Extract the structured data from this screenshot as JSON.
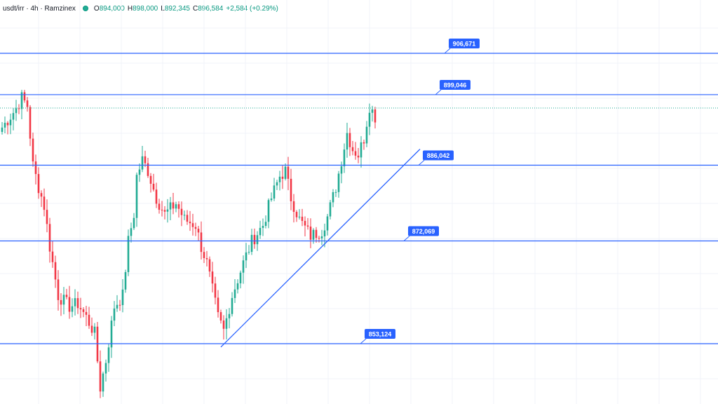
{
  "header": {
    "symbol": "usdt/irr · 4h · Ramzinex",
    "status_color": "#22ab94",
    "ohlc": {
      "o_label": "O",
      "o_value": "894,000",
      "h_label": "H",
      "h_value": "898,000",
      "l_label": "L",
      "l_value": "892,345",
      "c_label": "C",
      "c_value": "896,584",
      "change": "+2,584 (+0.29%)"
    }
  },
  "colors": {
    "up": "#22ab94",
    "down": "#f23645",
    "level_line": "#2962ff",
    "label_bg": "#2962ff",
    "label_text": "#ffffff",
    "grid": "#f0f3fa",
    "last_price_line": "#22ab94"
  },
  "chart_data": {
    "type": "candlestick",
    "timeframe": "4h",
    "ylim": [
      842000,
      916500
    ],
    "grid": true,
    "last_price": 896584,
    "horizontal_levels": [
      {
        "value": 906671,
        "label": "906,671"
      },
      {
        "value": 899046,
        "label": "899,046"
      },
      {
        "value": 886042,
        "label": "886,042"
      },
      {
        "value": 872069,
        "label": "872,069"
      },
      {
        "value": 853124,
        "label": "853,124"
      }
    ],
    "trendline": {
      "start_index": 78,
      "start_value": 852500,
      "end_index": 149,
      "end_value": 889000
    },
    "anchors": [
      [
        0,
        893000
      ],
      [
        5,
        896500
      ],
      [
        7,
        898500
      ],
      [
        9,
        897000
      ],
      [
        11,
        886000
      ],
      [
        13,
        882000
      ],
      [
        15,
        878500
      ],
      [
        17,
        871000
      ],
      [
        20,
        862000
      ],
      [
        24,
        860000
      ],
      [
        27,
        860500
      ],
      [
        30,
        858000
      ],
      [
        33,
        855000
      ],
      [
        35,
        845000
      ],
      [
        37,
        850000
      ],
      [
        40,
        860000
      ],
      [
        43,
        862000
      ],
      [
        45,
        872000
      ],
      [
        47,
        877000
      ],
      [
        48,
        884000
      ],
      [
        50,
        887000
      ],
      [
        52,
        885000
      ],
      [
        55,
        880000
      ],
      [
        58,
        877000
      ],
      [
        62,
        879000
      ],
      [
        65,
        876000
      ],
      [
        69,
        875000
      ],
      [
        71,
        871000
      ],
      [
        73,
        868000
      ],
      [
        77,
        858000
      ],
      [
        79,
        855500
      ],
      [
        82,
        862000
      ],
      [
        86,
        868000
      ],
      [
        89,
        872000
      ],
      [
        93,
        875000
      ],
      [
        96,
        880000
      ],
      [
        99,
        884000
      ],
      [
        101,
        885000
      ],
      [
        103,
        880000
      ],
      [
        106,
        876000
      ],
      [
        110,
        873000
      ],
      [
        114,
        874000
      ],
      [
        116,
        876500
      ],
      [
        119,
        882000
      ],
      [
        121,
        887000
      ],
      [
        123,
        892000
      ],
      [
        125,
        889000
      ],
      [
        127,
        888000
      ],
      [
        129,
        891000
      ],
      [
        131,
        897000
      ],
      [
        133,
        895000
      ]
    ]
  }
}
